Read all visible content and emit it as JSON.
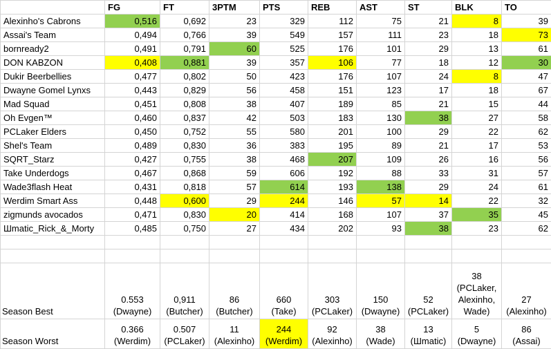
{
  "colors": {
    "green": "#92d050",
    "yellow": "#ffff00"
  },
  "headers": [
    "",
    "FG",
    "FT",
    "3PTM",
    "PTS",
    "REB",
    "AST",
    "ST",
    "BLK",
    "TO"
  ],
  "rows": [
    {
      "name": "Alexinho's Cabrons",
      "cells": [
        "0,516",
        "0,692",
        "23",
        "329",
        "112",
        "75",
        "21",
        "8",
        "39"
      ],
      "hl": [
        "g",
        "",
        "",
        "",
        "",
        "",
        "",
        "y",
        ""
      ]
    },
    {
      "name": "Assai's Team",
      "cells": [
        "0,494",
        "0,766",
        "39",
        "549",
        "157",
        "111",
        "23",
        "18",
        "73"
      ],
      "hl": [
        "",
        "",
        "",
        "",
        "",
        "",
        "",
        "",
        "y"
      ]
    },
    {
      "name": "bornready2",
      "cells": [
        "0,491",
        "0,791",
        "60",
        "525",
        "176",
        "101",
        "29",
        "13",
        "61"
      ],
      "hl": [
        "",
        "",
        "g",
        "",
        "",
        "",
        "",
        "",
        ""
      ]
    },
    {
      "name": "DON KABZON",
      "cells": [
        "0,408",
        "0,881",
        "39",
        "357",
        "106",
        "77",
        "18",
        "12",
        "30"
      ],
      "hl": [
        "y",
        "g",
        "",
        "",
        "y",
        "",
        "",
        "",
        "g"
      ]
    },
    {
      "name": "Dukir Beerbellies",
      "cells": [
        "0,477",
        "0,802",
        "50",
        "423",
        "176",
        "107",
        "24",
        "8",
        "47"
      ],
      "hl": [
        "",
        "",
        "",
        "",
        "",
        "",
        "",
        "y",
        ""
      ]
    },
    {
      "name": "Dwayne Gomel Lynxs",
      "cells": [
        "0,443",
        "0,829",
        "56",
        "458",
        "151",
        "123",
        "17",
        "18",
        "67"
      ],
      "hl": [
        "",
        "",
        "",
        "",
        "",
        "",
        "",
        "",
        ""
      ]
    },
    {
      "name": "Mad Squad",
      "cells": [
        "0,451",
        "0,808",
        "38",
        "407",
        "189",
        "85",
        "21",
        "15",
        "44"
      ],
      "hl": [
        "",
        "",
        "",
        "",
        "",
        "",
        "",
        "",
        ""
      ]
    },
    {
      "name": "Oh Evgen™",
      "cells": [
        "0,460",
        "0,837",
        "42",
        "503",
        "183",
        "130",
        "38",
        "27",
        "58"
      ],
      "hl": [
        "",
        "",
        "",
        "",
        "",
        "",
        "g",
        "",
        ""
      ]
    },
    {
      "name": "PCLaker Elders",
      "cells": [
        "0,450",
        "0,752",
        "55",
        "580",
        "201",
        "100",
        "29",
        "22",
        "62"
      ],
      "hl": [
        "",
        "",
        "",
        "",
        "",
        "",
        "",
        "",
        ""
      ]
    },
    {
      "name": "Shel's Team",
      "cells": [
        "0,489",
        "0,830",
        "36",
        "383",
        "195",
        "89",
        "21",
        "17",
        "53"
      ],
      "hl": [
        "",
        "",
        "",
        "",
        "",
        "",
        "",
        "",
        ""
      ]
    },
    {
      "name": "SQRT_Starz",
      "cells": [
        "0,427",
        "0,755",
        "38",
        "468",
        "207",
        "109",
        "26",
        "16",
        "56"
      ],
      "hl": [
        "",
        "",
        "",
        "",
        "g",
        "",
        "",
        "",
        ""
      ]
    },
    {
      "name": "Take Underdogs",
      "cells": [
        "0,467",
        "0,868",
        "59",
        "606",
        "192",
        "88",
        "33",
        "31",
        "57"
      ],
      "hl": [
        "",
        "",
        "",
        "",
        "",
        "",
        "",
        "",
        ""
      ]
    },
    {
      "name": "Wade3flash Heat",
      "cells": [
        "0,431",
        "0,818",
        "57",
        "614",
        "193",
        "138",
        "29",
        "24",
        "61"
      ],
      "hl": [
        "",
        "",
        "",
        "g",
        "",
        "g",
        "",
        "",
        ""
      ]
    },
    {
      "name": "Werdim Smart Ass",
      "cells": [
        "0,448",
        "0,600",
        "29",
        "244",
        "146",
        "57",
        "14",
        "22",
        "32"
      ],
      "hl": [
        "",
        "y",
        "",
        "y",
        "",
        "y",
        "y",
        "",
        ""
      ]
    },
    {
      "name": "zigmunds avocados",
      "cells": [
        "0,471",
        "0,830",
        "20",
        "414",
        "168",
        "107",
        "37",
        "35",
        "45"
      ],
      "hl": [
        "",
        "",
        "y",
        "",
        "",
        "",
        "",
        "g",
        ""
      ]
    },
    {
      "name": "Шmatic_Rick_&_Morty",
      "cells": [
        "0,485",
        "0,750",
        "27",
        "434",
        "202",
        "93",
        "38",
        "23",
        "62"
      ],
      "hl": [
        "",
        "",
        "",
        "",
        "",
        "",
        "g",
        "",
        ""
      ]
    }
  ],
  "season_best": {
    "label": "Season Best",
    "values": [
      "0.553",
      "0,911",
      "86",
      "660",
      "303",
      "150",
      "52",
      "38",
      "27"
    ],
    "who": [
      "(Dwayne)",
      "(Butcher)",
      "(Butcher)",
      "(Take)",
      "(PCLaker)",
      "(Dwayne)",
      "(PCLaker)",
      "(PCLaker, Alexinho, Wade)",
      "(Alexinho)"
    ]
  },
  "season_worst": {
    "label": "Season Worst",
    "values": [
      "0.366",
      "0.507",
      "11",
      "244",
      "92",
      "38",
      "13",
      "5",
      "86"
    ],
    "who": [
      "(Werdim)",
      "(PCLaker)",
      "(Alexinho)",
      "(Werdim)",
      "(Alexinho)",
      "(Wade)",
      "(Шmatic)",
      "(Dwayne)",
      "(Assai)"
    ],
    "hl": [
      "",
      "",
      "",
      "y",
      "",
      "",
      "",
      "",
      ""
    ]
  }
}
